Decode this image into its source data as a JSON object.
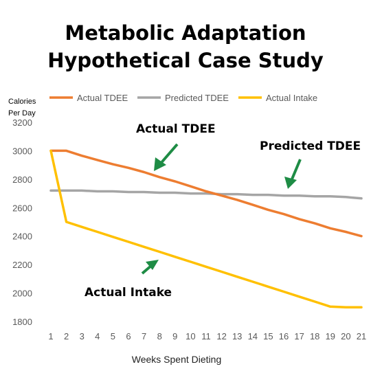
{
  "title_line1": "Metabolic Adaptation",
  "title_line2": "Hypothetical Case Study",
  "chart_data": {
    "type": "line",
    "ylabel": "Calories Per Day",
    "ylabel_line1": "Calories",
    "ylabel_line2": "Per Day",
    "xlabel": "Weeks Spent Dieting",
    "ylim": [
      1800,
      3200
    ],
    "y_ticks": [
      "1800",
      "2000",
      "2200",
      "2400",
      "2600",
      "2800",
      "3000",
      "3200"
    ],
    "x": [
      1,
      2,
      3,
      4,
      5,
      6,
      7,
      8,
      9,
      10,
      11,
      12,
      13,
      14,
      15,
      16,
      17,
      18,
      19,
      20,
      21
    ],
    "x_tick_labels": [
      "1",
      "2",
      "3",
      "4",
      "5",
      "6",
      "7",
      "8",
      "9",
      "10",
      "11",
      "12",
      "13",
      "14",
      "15",
      "16",
      "17",
      "18",
      "19",
      "20",
      "21"
    ],
    "grid": false,
    "legend_placement": "top",
    "series": [
      {
        "name": "Actual TDEE",
        "color": "#ED7D31",
        "values": [
          3000,
          3000,
          2965,
          2935,
          2905,
          2880,
          2850,
          2815,
          2785,
          2750,
          2715,
          2685,
          2655,
          2620,
          2585,
          2555,
          2520,
          2490,
          2455,
          2430,
          2400
        ]
      },
      {
        "name": "Predicted TDEE",
        "color": "#A5A5A5",
        "values": [
          2720,
          2720,
          2720,
          2715,
          2715,
          2710,
          2710,
          2705,
          2705,
          2700,
          2700,
          2695,
          2695,
          2690,
          2690,
          2685,
          2685,
          2680,
          2680,
          2675,
          2665
        ]
      },
      {
        "name": "Actual Intake",
        "color": "#FFC000",
        "values": [
          3000,
          2500,
          2465,
          2430,
          2395,
          2360,
          2325,
          2290,
          2255,
          2220,
          2185,
          2150,
          2115,
          2080,
          2045,
          2010,
          1975,
          1940,
          1905,
          1900,
          1900
        ]
      }
    ],
    "annotations": [
      {
        "text": "Actual TDEE",
        "arrow_color": "#1E8C45"
      },
      {
        "text": "Predicted TDEE",
        "arrow_color": "#1E8C45"
      },
      {
        "text": "Actual Intake",
        "arrow_color": "#1E8C45"
      }
    ]
  }
}
